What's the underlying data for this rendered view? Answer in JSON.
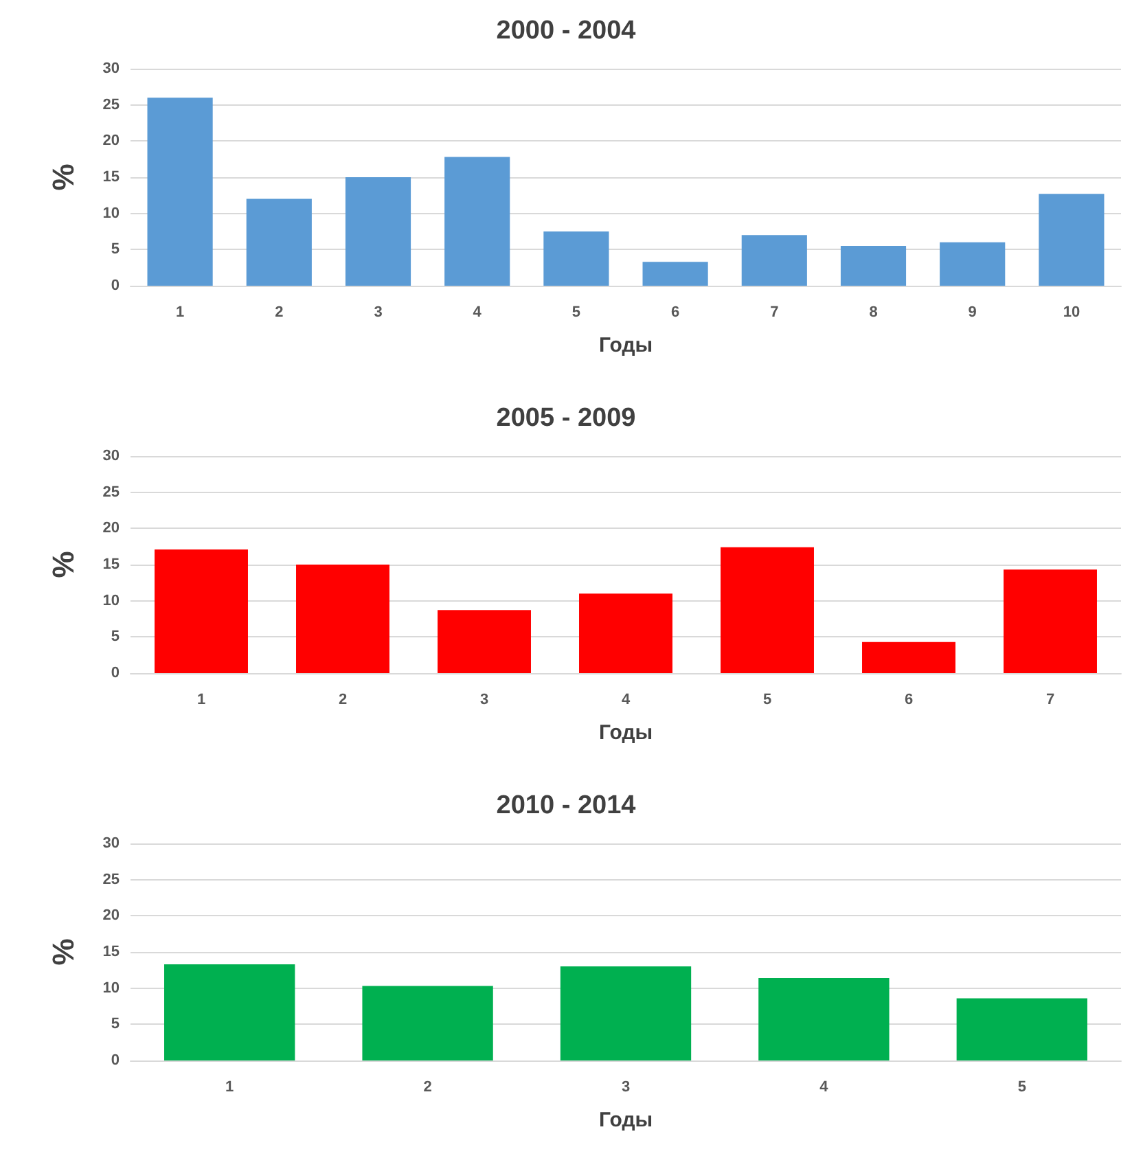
{
  "chart_data": [
    {
      "type": "bar",
      "title": "2000 - 2004",
      "xlabel": "Годы",
      "ylabel": "%",
      "categories": [
        "1",
        "2",
        "3",
        "4",
        "5",
        "6",
        "7",
        "8",
        "9",
        "10"
      ],
      "values": [
        26,
        12,
        15,
        17.8,
        7.5,
        3.3,
        7,
        5.5,
        6,
        12.7
      ],
      "color": "#5b9bd5",
      "ylim": [
        0,
        30
      ],
      "yticks": [
        0,
        5,
        10,
        15,
        20,
        25,
        30
      ],
      "grid": "y"
    },
    {
      "type": "bar",
      "title": "2005 - 2009",
      "xlabel": "Годы",
      "ylabel": "%",
      "categories": [
        "1",
        "2",
        "3",
        "4",
        "5",
        "6",
        "7"
      ],
      "values": [
        17.1,
        15,
        8.7,
        11,
        17.4,
        4.3,
        14.3
      ],
      "color": "#ff0000",
      "ylim": [
        0,
        30
      ],
      "yticks": [
        0,
        5,
        10,
        15,
        20,
        25,
        30
      ],
      "grid": "y"
    },
    {
      "type": "bar",
      "title": "2010 - 2014",
      "xlabel": "Годы",
      "ylabel": "%",
      "categories": [
        "1",
        "2",
        "3",
        "4",
        "5"
      ],
      "values": [
        13.3,
        10.3,
        13,
        11.4,
        8.6
      ],
      "color": "#00b050",
      "ylim": [
        0,
        30
      ],
      "yticks": [
        0,
        5,
        10,
        15,
        20,
        25,
        30
      ],
      "grid": "y"
    }
  ]
}
